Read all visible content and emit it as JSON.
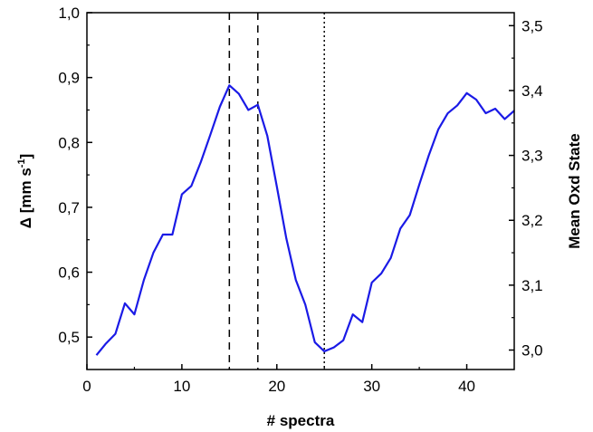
{
  "chart_data": {
    "type": "line",
    "xlabel": "# spectra",
    "ylabel_left": {
      "prefix": "Δ [mm s",
      "superscript": "-1",
      "suffix": "]"
    },
    "ylabel_right": "Mean Oxd State",
    "xlim": [
      0,
      45
    ],
    "ylim_left": [
      0.45,
      1.0
    ],
    "ylim_right": [
      2.97,
      3.52
    ],
    "x_ticks": [
      0,
      10,
      20,
      30,
      40
    ],
    "x_tick_labels": [
      "0",
      "10",
      "20",
      "30",
      "40"
    ],
    "y_left_ticks": [
      0.5,
      0.6,
      0.7,
      0.8,
      0.9,
      1.0
    ],
    "y_left_tick_labels": [
      "0,5",
      "0,6",
      "0,7",
      "0,8",
      "0,9",
      "1,0"
    ],
    "y_right_ticks": [
      3.0,
      3.1,
      3.2,
      3.3,
      3.4,
      3.5
    ],
    "y_right_tick_labels": [
      "3,0",
      "3,1",
      "3,2",
      "3,3",
      "3,4",
      "3,5"
    ],
    "grid": false,
    "series_color": "#1a1ae6",
    "series": [
      {
        "x": [
          1,
          2,
          3,
          4,
          5,
          6,
          7,
          8,
          9,
          10,
          11,
          12,
          13,
          14,
          15,
          16,
          17,
          18,
          19,
          20,
          21,
          22,
          23,
          24,
          25,
          26,
          27,
          28,
          29,
          30,
          31,
          32,
          33,
          34,
          35,
          36,
          37,
          38,
          39,
          40,
          41,
          42,
          43,
          44,
          45
        ],
        "values": [
          0.472,
          0.49,
          0.505,
          0.552,
          0.535,
          0.588,
          0.63,
          0.658,
          0.658,
          0.72,
          0.733,
          0.77,
          0.812,
          0.855,
          0.888,
          0.875,
          0.85,
          0.858,
          0.81,
          0.732,
          0.652,
          0.588,
          0.55,
          0.492,
          0.478,
          0.484,
          0.495,
          0.535,
          0.523,
          0.584,
          0.598,
          0.622,
          0.667,
          0.688,
          0.735,
          0.78,
          0.82,
          0.845,
          0.857,
          0.876,
          0.866,
          0.845,
          0.852,
          0.836,
          0.849
        ]
      }
    ],
    "vertical_lines": [
      {
        "x": 15,
        "style": "dashed"
      },
      {
        "x": 18,
        "style": "dashed"
      },
      {
        "x": 25,
        "style": "dotted"
      }
    ]
  }
}
